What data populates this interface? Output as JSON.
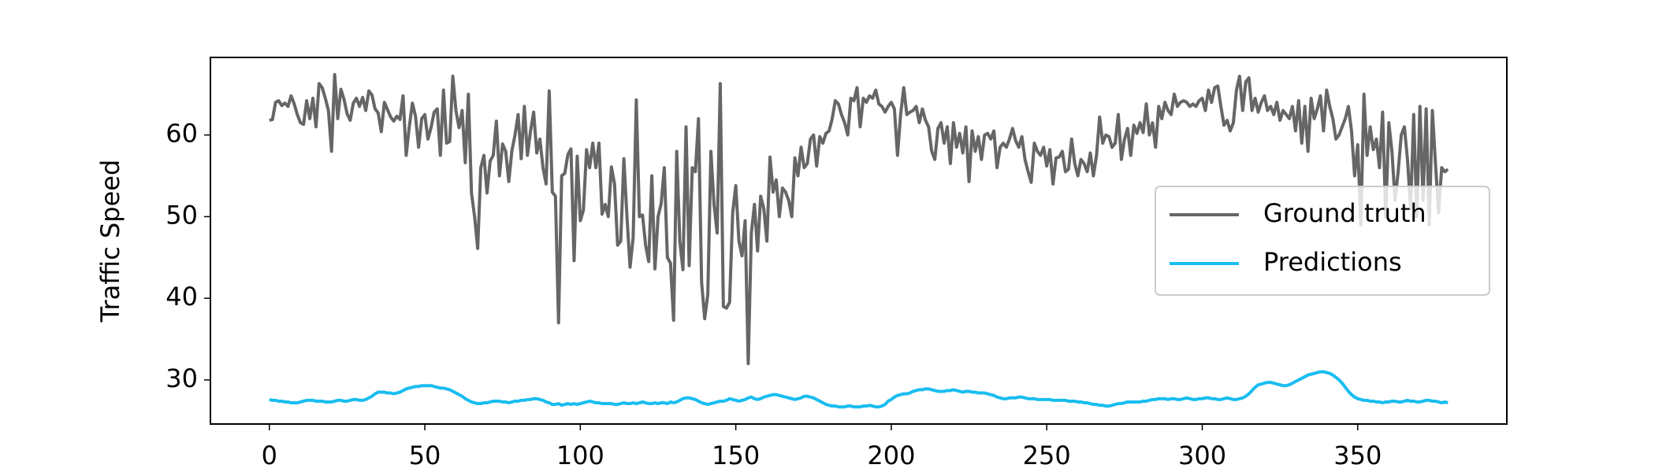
{
  "chart_data": {
    "type": "line",
    "ylabel": "Traffic Speed",
    "x": [
      0,
      1,
      2,
      3,
      4,
      5,
      6,
      7,
      8,
      9,
      10,
      11,
      12,
      13,
      14,
      15,
      16,
      17,
      18,
      19,
      20,
      21,
      22,
      23,
      24,
      25,
      26,
      27,
      28,
      29,
      30,
      31,
      32,
      33,
      34,
      35,
      36,
      37,
      38,
      39,
      40,
      41,
      42,
      43,
      44,
      45,
      46,
      47,
      48,
      49,
      50,
      51,
      52,
      53,
      54,
      55,
      56,
      57,
      58,
      59,
      60,
      61,
      62,
      63,
      64,
      65,
      66,
      67,
      68,
      69,
      70,
      71,
      72,
      73,
      74,
      75,
      76,
      77,
      78,
      79,
      80,
      81,
      82,
      83,
      84,
      85,
      86,
      87,
      88,
      89,
      90,
      91,
      92,
      93,
      94,
      95,
      96,
      97,
      98,
      99,
      100,
      101,
      102,
      103,
      104,
      105,
      106,
      107,
      108,
      109,
      110,
      111,
      112,
      113,
      114,
      115,
      116,
      117,
      118,
      119,
      120,
      121,
      122,
      123,
      124,
      125,
      126,
      127,
      128,
      129,
      130,
      131,
      132,
      133,
      134,
      135,
      136,
      137,
      138,
      139,
      140,
      141,
      142,
      143,
      144,
      145,
      146,
      147,
      148,
      149,
      150,
      151,
      152,
      153,
      154,
      155,
      156,
      157,
      158,
      159,
      160,
      161,
      162,
      163,
      164,
      165,
      166,
      167,
      168,
      169,
      170,
      171,
      172,
      173,
      174,
      175,
      176,
      177,
      178,
      179,
      180,
      181,
      182,
      183,
      184,
      185,
      186,
      187,
      188,
      189,
      190,
      191,
      192,
      193,
      194,
      195,
      196,
      197,
      198,
      199,
      200,
      201,
      202,
      203,
      204,
      205,
      206,
      207,
      208,
      209,
      210,
      211,
      212,
      213,
      214,
      215,
      216,
      217,
      218,
      219,
      220,
      221,
      222,
      223,
      224,
      225,
      226,
      227,
      228,
      229,
      230,
      231,
      232,
      233,
      234,
      235,
      236,
      237,
      238,
      239,
      240,
      241,
      242,
      243,
      244,
      245,
      246,
      247,
      248,
      249,
      250,
      251,
      252,
      253,
      254,
      255,
      256,
      257,
      258,
      259,
      260,
      261,
      262,
      263,
      264,
      265,
      266,
      267,
      268,
      269,
      270,
      271,
      272,
      273,
      274,
      275,
      276,
      277,
      278,
      279,
      280,
      281,
      282,
      283,
      284,
      285,
      286,
      287,
      288,
      289,
      290,
      291,
      292,
      293,
      294,
      295,
      296,
      297,
      298,
      299,
      300,
      301,
      302,
      303,
      304,
      305,
      306,
      307,
      308,
      309,
      310,
      311,
      312,
      313,
      314,
      315,
      316,
      317,
      318,
      319,
      320,
      321,
      322,
      323,
      324,
      325,
      326,
      327,
      328,
      329,
      330,
      331,
      332,
      333,
      334,
      335,
      336,
      337,
      338,
      339,
      340,
      341,
      342,
      343,
      344,
      345,
      346,
      347,
      348,
      349,
      350,
      351,
      352,
      353,
      354,
      355,
      356,
      357,
      358,
      359,
      360,
      361,
      362,
      363,
      364,
      365,
      366,
      367,
      368,
      369,
      370,
      371,
      372,
      373,
      374,
      375,
      376,
      377,
      378,
      379
    ],
    "series": [
      {
        "name": "Ground truth",
        "color": "#666666",
        "values": [
          61.8,
          61.9,
          64.0,
          64.2,
          63.6,
          63.9,
          63.5,
          64.8,
          63.8,
          62.5,
          61.5,
          61.3,
          64.2,
          62.0,
          64.5,
          61.0,
          66.3,
          65.8,
          64.5,
          63.0,
          58.0,
          67.4,
          62.0,
          65.6,
          64.4,
          62.6,
          61.8,
          63.9,
          64.5,
          63.5,
          64.6,
          63.0,
          65.4,
          64.9,
          63.2,
          62.7,
          60.4,
          64.0,
          63.1,
          62.2,
          61.7,
          62.3,
          61.9,
          64.8,
          57.5,
          61.0,
          63.9,
          62.3,
          58.5,
          62.0,
          62.5,
          59.5,
          60.9,
          62.8,
          63.2,
          57.5,
          65.5,
          59.0,
          59.2,
          67.2,
          63.0,
          60.9,
          63.0,
          56.6,
          65.0,
          52.9,
          50.0,
          46.1,
          56.0,
          57.5,
          52.9,
          56.8,
          57.5,
          61.7,
          55.0,
          58.9,
          58.0,
          54.3,
          58.1,
          60.0,
          62.5,
          57.1,
          63.5,
          57.5,
          60.5,
          62.8,
          57.8,
          59.5,
          56.0,
          54.0,
          65.4,
          53.0,
          52.5,
          37.0,
          55.0,
          55.3,
          57.6,
          58.3,
          44.6,
          57.4,
          49.5,
          50.8,
          58.2,
          56.0,
          59.0,
          56.0,
          59.0,
          50.3,
          51.5,
          50.0,
          56.1,
          54.0,
          46.5,
          47.0,
          57.1,
          50.0,
          43.8,
          47.5,
          64.3,
          50.0,
          50.2,
          46.5,
          44.5,
          55.0,
          43.6,
          50.0,
          51.6,
          56.0,
          45.0,
          44.3,
          37.3,
          58.0,
          47.0,
          43.5,
          61.0,
          44.0,
          56.0,
          55.5,
          62.0,
          42.0,
          37.5,
          40.5,
          58.0,
          51.5,
          48.0,
          66.3,
          39.0,
          38.8,
          39.5,
          50.5,
          53.8,
          47.0,
          45.2,
          49.5,
          32.0,
          48.0,
          51.5,
          45.8,
          52.5,
          51.0,
          47.0,
          57.3,
          53.0,
          54.5,
          50.0,
          53.5,
          53.0,
          52.0,
          50.0,
          57.2,
          55.0,
          58.5,
          56.0,
          56.5,
          59.5,
          60.0,
          56.2,
          59.8,
          59.0,
          60.2,
          60.5,
          62.0,
          64.2,
          63.8,
          62.5,
          61.5,
          60.0,
          64.5,
          64.2,
          65.8,
          61.0,
          64.5,
          64.0,
          64.8,
          64.5,
          65.5,
          63.8,
          63.5,
          62.8,
          63.5,
          64.0,
          63.2,
          57.5,
          62.5,
          65.8,
          62.5,
          62.8,
          63.0,
          63.5,
          61.5,
          63.2,
          61.8,
          61.0,
          58.0,
          57.0,
          60.8,
          61.5,
          59.0,
          61.0,
          56.5,
          61.5,
          58.5,
          60.2,
          57.8,
          61.0,
          54.3,
          60.5,
          58.0,
          59.8,
          57.0,
          60.0,
          60.2,
          59.5,
          60.5,
          56.0,
          58.5,
          59.0,
          58.5,
          59.5,
          60.8,
          59.3,
          58.5,
          59.8,
          57.0,
          55.5,
          54.2,
          59.0,
          58.0,
          57.5,
          58.5,
          56.2,
          58.2,
          54.0,
          57.2,
          57.3,
          58.0,
          55.5,
          55.8,
          59.5,
          56.5,
          55.0,
          57.0,
          56.5,
          55.5,
          57.8,
          55.0,
          57.5,
          62.2,
          59.0,
          60.0,
          59.8,
          58.5,
          59.0,
          62.5,
          57.0,
          59.5,
          60.8,
          57.5,
          61.2,
          60.2,
          61.5,
          60.3,
          63.8,
          60.0,
          61.5,
          58.5,
          63.5,
          62.0,
          64.0,
          63.0,
          62.5,
          65.0,
          63.5,
          64.0,
          64.2,
          64.0,
          63.5,
          63.8,
          63.5,
          64.2,
          64.5,
          63.0,
          65.5,
          64.0,
          65.8,
          66.0,
          63.5,
          61.2,
          61.8,
          60.5,
          61.5,
          65.5,
          67.2,
          63.0,
          66.5,
          67.0,
          63.0,
          64.5,
          62.8,
          64.0,
          64.8,
          63.0,
          63.5,
          62.5,
          64.0,
          61.8,
          63.0,
          62.5,
          62.0,
          63.5,
          60.5,
          64.2,
          59.0,
          63.5,
          58.0,
          64.5,
          62.0,
          63.2,
          64.8,
          60.5,
          65.5,
          63.5,
          62.0,
          59.5,
          60.0,
          61.0,
          62.0,
          63.5,
          60.5,
          55.0,
          58.8,
          49.0,
          65.0,
          57.5,
          61.0,
          58.2,
          59.5,
          56.0,
          62.8,
          50.0,
          61.5,
          58.0,
          52.0,
          55.5,
          60.0,
          61.0,
          57.0,
          51.0,
          62.5,
          50.0,
          63.5,
          52.0,
          63.2,
          49.0,
          63.0,
          56.5,
          50.5,
          56.0,
          55.5,
          55.8
        ]
      },
      {
        "name": "Predictions",
        "color": "#19bdf0",
        "values": [
          27.6,
          27.5,
          27.5,
          27.4,
          27.4,
          27.3,
          27.3,
          27.2,
          27.2,
          27.2,
          27.3,
          27.4,
          27.5,
          27.5,
          27.5,
          27.4,
          27.4,
          27.4,
          27.3,
          27.3,
          27.3,
          27.4,
          27.5,
          27.5,
          27.4,
          27.4,
          27.5,
          27.6,
          27.6,
          27.5,
          27.5,
          27.6,
          27.8,
          28.0,
          28.3,
          28.5,
          28.5,
          28.5,
          28.4,
          28.4,
          28.3,
          28.4,
          28.5,
          28.7,
          28.9,
          29.0,
          29.1,
          29.2,
          29.2,
          29.3,
          29.3,
          29.3,
          29.3,
          29.2,
          29.1,
          29.0,
          29.0,
          28.9,
          28.8,
          28.6,
          28.4,
          28.2,
          28.0,
          27.7,
          27.5,
          27.3,
          27.2,
          27.1,
          27.1,
          27.2,
          27.2,
          27.3,
          27.4,
          27.4,
          27.4,
          27.3,
          27.3,
          27.2,
          27.3,
          27.4,
          27.4,
          27.5,
          27.5,
          27.6,
          27.6,
          27.7,
          27.7,
          27.6,
          27.5,
          27.3,
          27.2,
          27.0,
          27.0,
          27.1,
          26.9,
          27.0,
          27.1,
          27.0,
          27.1,
          27.0,
          27.1,
          27.2,
          27.3,
          27.4,
          27.3,
          27.2,
          27.2,
          27.1,
          27.1,
          27.1,
          27.1,
          27.0,
          27.0,
          27.1,
          27.2,
          27.1,
          27.1,
          27.2,
          27.1,
          27.2,
          27.3,
          27.2,
          27.1,
          27.1,
          27.2,
          27.1,
          27.2,
          27.2,
          27.1,
          27.3,
          27.2,
          27.3,
          27.5,
          27.7,
          27.8,
          27.8,
          27.7,
          27.6,
          27.4,
          27.2,
          27.1,
          27.0,
          27.1,
          27.2,
          27.3,
          27.4,
          27.4,
          27.5,
          27.7,
          27.6,
          27.5,
          27.4,
          27.5,
          27.6,
          27.8,
          27.9,
          27.7,
          27.6,
          27.7,
          27.9,
          28.0,
          28.1,
          28.2,
          28.2,
          28.1,
          28.0,
          27.9,
          27.8,
          27.7,
          27.6,
          27.7,
          27.8,
          28.0,
          28.0,
          27.9,
          27.8,
          27.6,
          27.4,
          27.2,
          27.0,
          26.9,
          26.8,
          26.8,
          26.7,
          26.7,
          26.7,
          26.8,
          26.8,
          26.7,
          26.7,
          26.7,
          26.8,
          26.8,
          26.9,
          26.8,
          26.7,
          26.7,
          26.8,
          27.0,
          27.4,
          27.6,
          27.9,
          28.1,
          28.2,
          28.3,
          28.3,
          28.4,
          28.6,
          28.7,
          28.8,
          28.8,
          28.9,
          28.9,
          28.8,
          28.7,
          28.6,
          28.6,
          28.6,
          28.7,
          28.7,
          28.8,
          28.7,
          28.6,
          28.5,
          28.6,
          28.6,
          28.5,
          28.5,
          28.4,
          28.4,
          28.4,
          28.3,
          28.2,
          28.1,
          27.9,
          27.8,
          27.7,
          27.7,
          27.8,
          27.8,
          27.8,
          27.9,
          27.9,
          27.8,
          27.7,
          27.7,
          27.7,
          27.6,
          27.6,
          27.6,
          27.6,
          27.6,
          27.5,
          27.5,
          27.5,
          27.5,
          27.5,
          27.4,
          27.4,
          27.4,
          27.3,
          27.3,
          27.2,
          27.2,
          27.1,
          27.0,
          27.0,
          26.9,
          26.9,
          26.8,
          26.8,
          26.9,
          27.0,
          27.1,
          27.1,
          27.2,
          27.3,
          27.3,
          27.3,
          27.3,
          27.3,
          27.4,
          27.4,
          27.5,
          27.6,
          27.6,
          27.7,
          27.7,
          27.7,
          27.6,
          27.7,
          27.7,
          27.6,
          27.6,
          27.7,
          27.8,
          27.7,
          27.6,
          27.6,
          27.7,
          27.7,
          27.8,
          27.8,
          27.7,
          27.7,
          27.6,
          27.6,
          27.7,
          27.8,
          27.7,
          27.6,
          27.6,
          27.7,
          27.8,
          28.0,
          28.3,
          28.7,
          29.1,
          29.4,
          29.5,
          29.6,
          29.7,
          29.7,
          29.6,
          29.5,
          29.4,
          29.3,
          29.3,
          29.4,
          29.6,
          29.8,
          30.0,
          30.2,
          30.4,
          30.6,
          30.7,
          30.8,
          30.9,
          31.0,
          31.0,
          30.9,
          30.8,
          30.6,
          30.3,
          30.0,
          29.6,
          29.1,
          28.6,
          28.2,
          27.9,
          27.7,
          27.6,
          27.5,
          27.5,
          27.4,
          27.4,
          27.3,
          27.3,
          27.2,
          27.3,
          27.3,
          27.4,
          27.4,
          27.3,
          27.3,
          27.4,
          27.5,
          27.4,
          27.4,
          27.3,
          27.3,
          27.4,
          27.5,
          27.5,
          27.4,
          27.4,
          27.3,
          27.2,
          27.3,
          27.2
        ]
      }
    ],
    "xlim": [
      -18.95,
      397.95
    ],
    "xticks": [
      0,
      50,
      100,
      150,
      200,
      250,
      300,
      350
    ],
    "ylim": [
      24.6,
      69.5
    ],
    "yticks": [
      30,
      40,
      50,
      60
    ],
    "legend_loc": "center right"
  }
}
